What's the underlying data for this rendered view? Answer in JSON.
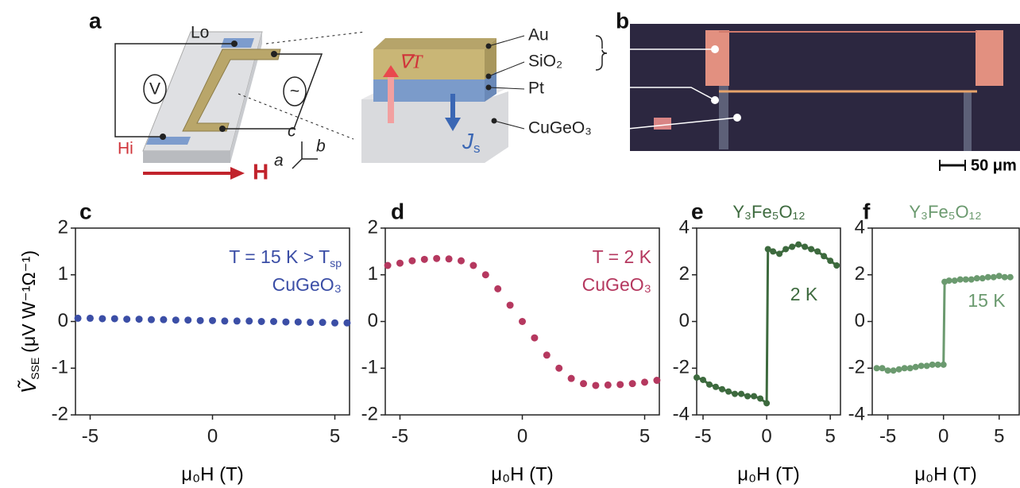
{
  "schematic": {
    "panel_a": "a",
    "panel_b": "b",
    "lo": "Lo",
    "hi": "Hi",
    "voltmeter": "V",
    "source": "~",
    "field": "H",
    "axis_c": "c",
    "axis_b": "b",
    "axis_a": "a",
    "gradient": "∇T",
    "spin_current": "J",
    "spin_current_sub": "s",
    "layer_au": "Au",
    "layer_sio2": "SiO₂",
    "layer_pt": "Pt",
    "layer_substrate": "CuGeO₃",
    "scale_bar": "50 μm"
  },
  "chart_data": [
    {
      "type": "scatter",
      "panel_label": "c",
      "color": "#3b4ea6",
      "ylabel_main": "Ṽ",
      "ylabel_sub": "SSE",
      "ylabel_unit": "(μV W⁻¹Ω⁻¹)",
      "annotation": "T = 15 K > T",
      "annotation_sub": "sp",
      "material": "CuGeO₃",
      "xlabel": "μ₀H (T)",
      "x": [
        -5.5,
        -5,
        -4.5,
        -4,
        -3.5,
        -3,
        -2.5,
        -2,
        -1.5,
        -1,
        -0.5,
        0,
        0.5,
        1,
        1.5,
        2,
        2.5,
        3,
        3.5,
        4,
        4.5,
        5,
        5.5
      ],
      "values": [
        0.07,
        0.07,
        0.06,
        0.06,
        0.05,
        0.05,
        0.04,
        0.04,
        0.03,
        0.03,
        0.02,
        0.02,
        0.01,
        0.01,
        0.01,
        0.0,
        0.0,
        -0.01,
        -0.01,
        -0.02,
        -0.02,
        -0.03,
        -0.03
      ],
      "xlim": [
        -5.6,
        5.6
      ],
      "xticks": [
        -5,
        0,
        5
      ],
      "ylim": [
        -2,
        2
      ],
      "yticks": [
        -2,
        -1,
        0,
        1,
        2
      ]
    },
    {
      "type": "scatter",
      "panel_label": "d",
      "color": "#b5385f",
      "annotation": "T = 2 K",
      "material": "CuGeO₃",
      "xlabel": "μ₀H (T)",
      "x": [
        -5.5,
        -5,
        -4.5,
        -4,
        -3.5,
        -3,
        -2.5,
        -2,
        -1.5,
        -1,
        -0.5,
        0,
        0.5,
        1,
        1.5,
        2,
        2.5,
        3,
        3.5,
        4,
        4.5,
        5,
        5.5
      ],
      "values": [
        1.2,
        1.25,
        1.3,
        1.33,
        1.35,
        1.34,
        1.3,
        1.2,
        1.0,
        0.7,
        0.35,
        0,
        -0.35,
        -0.72,
        -1.0,
        -1.22,
        -1.33,
        -1.37,
        -1.36,
        -1.35,
        -1.33,
        -1.3,
        -1.26
      ],
      "xlim": [
        -5.6,
        5.6
      ],
      "xticks": [
        -5,
        0,
        5
      ],
      "ylim": [
        -2,
        2
      ],
      "yticks": [
        -2,
        -1,
        0,
        1,
        2
      ]
    },
    {
      "type": "line",
      "panel_label": "e",
      "color": "#3d6a3e",
      "title": "Y₃Fe₅O₁₂",
      "annotation": "2 K",
      "xlabel": "μ₀H (T)",
      "x": [
        -5.5,
        -5,
        -4.5,
        -4,
        -3.5,
        -3,
        -2.5,
        -2,
        -1.5,
        -1,
        -0.5,
        0,
        0.1,
        0.5,
        1,
        1.5,
        2,
        2.5,
        3,
        3.5,
        4,
        4.5,
        5,
        5.5
      ],
      "values": [
        -2.4,
        -2.5,
        -2.7,
        -2.8,
        -2.9,
        -3.0,
        -3.1,
        -3.1,
        -3.2,
        -3.2,
        -3.3,
        -3.5,
        3.1,
        3.0,
        2.9,
        3.1,
        3.2,
        3.3,
        3.2,
        3.1,
        3.0,
        2.8,
        2.6,
        2.4
      ],
      "xlim": [
        -5.5,
        5.8
      ],
      "xticks": [
        -5,
        0,
        5
      ],
      "ylim": [
        -4,
        4
      ],
      "yticks": [
        -4,
        -2,
        0,
        2,
        4
      ]
    },
    {
      "type": "line",
      "panel_label": "f",
      "color": "#6b9a6f",
      "title": "Y₃Fe₅O₁₂",
      "annotation": "15 K",
      "xlabel": "μ₀H (T)",
      "x": [
        -6,
        -5.5,
        -5,
        -4.5,
        -4,
        -3.5,
        -3,
        -2.5,
        -2,
        -1.5,
        -1,
        -0.5,
        0,
        0.1,
        0.5,
        1,
        1.5,
        2,
        2.5,
        3,
        3.5,
        4,
        4.5,
        5,
        5.5,
        6
      ],
      "values": [
        -2.0,
        -2.0,
        -2.1,
        -2.1,
        -2.05,
        -2.0,
        -2.0,
        -1.95,
        -1.9,
        -1.9,
        -1.85,
        -1.85,
        -1.85,
        1.7,
        1.75,
        1.75,
        1.8,
        1.8,
        1.8,
        1.85,
        1.85,
        1.9,
        1.9,
        1.95,
        1.9,
        1.9
      ],
      "xlim": [
        -6.4,
        6.8
      ],
      "xticks": [
        -5,
        0,
        5
      ],
      "ylim": [
        -4,
        4
      ],
      "yticks": [
        -4,
        -2,
        0,
        2,
        4
      ]
    }
  ]
}
